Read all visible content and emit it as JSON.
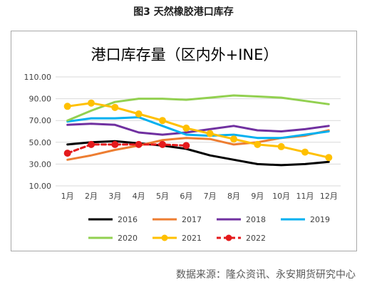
{
  "figure_title": "图3  天然橡胶港口库存",
  "source": "数据来源：隆众资讯、永安期货研究中心",
  "chart_data": {
    "type": "line",
    "title": "港口库存量（区内外+INE）",
    "xlabel": "",
    "ylabel": "",
    "categories": [
      "1月",
      "2月",
      "3月",
      "4月",
      "5月",
      "6月",
      "7月",
      "8月",
      "9月",
      "10月",
      "11月",
      "12月"
    ],
    "ylim": [
      10,
      110
    ],
    "yticks": [
      "10.00",
      "30.00",
      "50.00",
      "70.00",
      "90.00",
      "110.00"
    ],
    "ytick_values": [
      10,
      30,
      50,
      70,
      90,
      110
    ],
    "grid": true,
    "legend_position": "bottom",
    "series": [
      {
        "name": "2016",
        "color": "#000000",
        "marker": "none",
        "dashed": false,
        "values": [
          48,
          50,
          51,
          49,
          47,
          44,
          38,
          34,
          30,
          29,
          30,
          32
        ]
      },
      {
        "name": "2017",
        "color": "#ED7D31",
        "marker": "none",
        "dashed": false,
        "values": [
          34,
          38,
          43,
          47,
          52,
          54,
          53,
          48,
          50,
          54,
          56,
          61
        ]
      },
      {
        "name": "2018",
        "color": "#7030A0",
        "marker": "none",
        "dashed": false,
        "values": [
          66,
          67,
          66,
          59,
          57,
          59,
          62,
          65,
          61,
          60,
          62,
          65
        ]
      },
      {
        "name": "2019",
        "color": "#00B0F0",
        "marker": "none",
        "dashed": false,
        "values": [
          69,
          72,
          72,
          73,
          65,
          57,
          56,
          57,
          54,
          54,
          57,
          60
        ]
      },
      {
        "name": "2020",
        "color": "#92D050",
        "marker": "none",
        "dashed": false,
        "values": [
          70,
          79,
          87,
          90,
          90,
          89,
          91,
          93,
          92,
          91,
          88,
          85
        ]
      },
      {
        "name": "2021",
        "color": "#FFC000",
        "marker": "circle",
        "dashed": false,
        "values": [
          83,
          86,
          82,
          76,
          70,
          63,
          58,
          53,
          48,
          46,
          41,
          36
        ]
      },
      {
        "name": "2022",
        "color": "#E41A1C",
        "marker": "circle",
        "dashed": true,
        "values": [
          40,
          48,
          48,
          48,
          48,
          47,
          null,
          null,
          null,
          null,
          null,
          null
        ]
      }
    ]
  }
}
